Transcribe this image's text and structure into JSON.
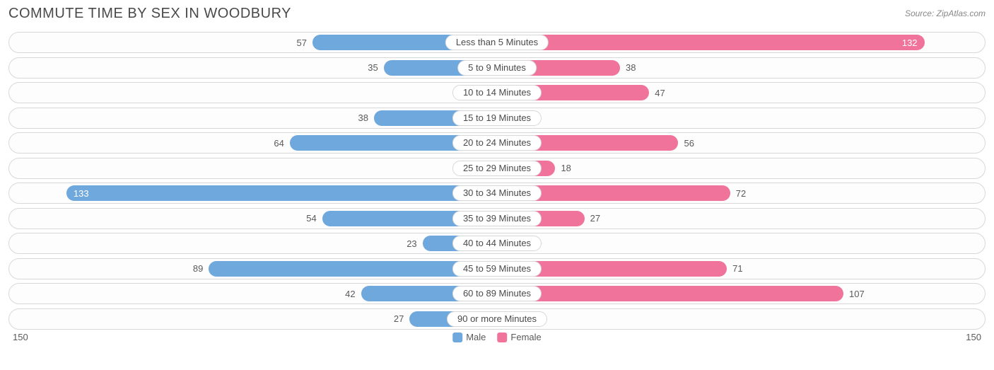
{
  "title": "COMMUTE TIME BY SEX IN WOODBURY",
  "source": "Source: ZipAtlas.com",
  "chart": {
    "type": "diverging-bar",
    "axis_max": 150,
    "axis_left_label": "150",
    "axis_right_label": "150",
    "colors": {
      "male": "#6fa8dc",
      "female": "#f0739b",
      "row_border": "#d8d8d8",
      "row_bg": "#fdfdfd",
      "text": "#5a5a5a",
      "title_text": "#4a4a4a"
    },
    "legend": [
      {
        "label": "Male",
        "color": "#6fa8dc"
      },
      {
        "label": "Female",
        "color": "#f0739b"
      }
    ],
    "categories": [
      {
        "label": "Less than 5 Minutes",
        "male": 57,
        "female": 132
      },
      {
        "label": "5 to 9 Minutes",
        "male": 35,
        "female": 38
      },
      {
        "label": "10 to 14 Minutes",
        "male": 4,
        "female": 47
      },
      {
        "label": "15 to 19 Minutes",
        "male": 38,
        "female": 6
      },
      {
        "label": "20 to 24 Minutes",
        "male": 64,
        "female": 56
      },
      {
        "label": "25 to 29 Minutes",
        "male": 8,
        "female": 18
      },
      {
        "label": "30 to 34 Minutes",
        "male": 133,
        "female": 72
      },
      {
        "label": "35 to 39 Minutes",
        "male": 54,
        "female": 27
      },
      {
        "label": "40 to 44 Minutes",
        "male": 23,
        "female": 5
      },
      {
        "label": "45 to 59 Minutes",
        "male": 89,
        "female": 71
      },
      {
        "label": "60 to 89 Minutes",
        "male": 42,
        "female": 107
      },
      {
        "label": "90 or more Minutes",
        "male": 27,
        "female": 0
      }
    ],
    "label_inside_threshold_pct": 85,
    "fontsize": {
      "title": 20,
      "labels": 13,
      "source": 12
    }
  }
}
